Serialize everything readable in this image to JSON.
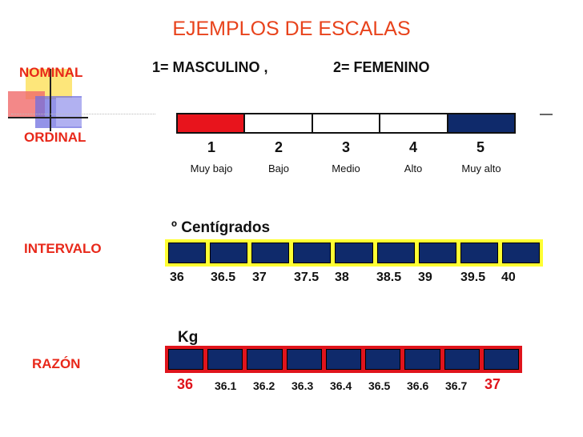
{
  "title": "EJEMPLOS DE ESCALAS",
  "colors": {
    "title": "#e8431c",
    "labels": "#e8281a",
    "navy": "#0f2a6b",
    "yellow": "#ffff33",
    "red": "#e0141c"
  },
  "nominal": {
    "label": "NOMINAL",
    "def1": "1= MASCULINO ,",
    "def2": "2= FEMENINO"
  },
  "ordinal": {
    "label": "ORDINAL",
    "items": [
      {
        "num": "1",
        "label": "Muy bajo",
        "color": "#e8141c"
      },
      {
        "num": "2",
        "label": "Bajo",
        "color": "#ffffff"
      },
      {
        "num": "3",
        "label": "Medio",
        "color": "#ffffff"
      },
      {
        "num": "4",
        "label": "Alto",
        "color": "#ffffff"
      },
      {
        "num": "5",
        "label": "Muy alto",
        "color": "#0f2a6b"
      }
    ]
  },
  "intervalo": {
    "label": "INTERVALO",
    "unit": "º Centígrados",
    "ticks": [
      "36",
      "36.5",
      "37",
      "37.5",
      "38",
      "38.5",
      "39",
      "39.5",
      "40"
    ]
  },
  "razon": {
    "label": "RAZÓN",
    "unit": "Kg",
    "ticks": [
      "36",
      "36.1",
      "36.2",
      "36.3",
      "36.4",
      "36.5",
      "36.6",
      "36.7",
      "37"
    ]
  }
}
